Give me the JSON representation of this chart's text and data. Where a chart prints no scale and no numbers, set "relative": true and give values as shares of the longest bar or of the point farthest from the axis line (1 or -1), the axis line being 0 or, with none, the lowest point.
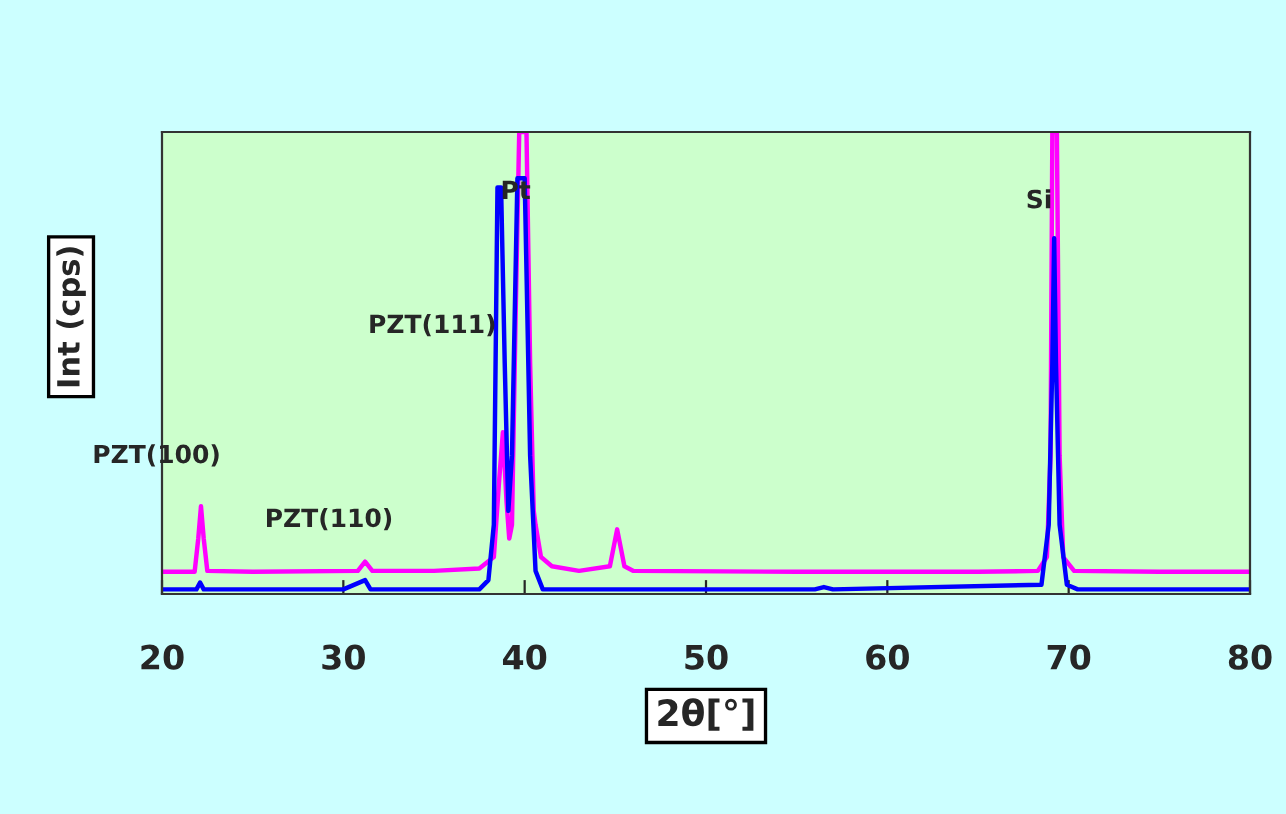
{
  "chart_data": {
    "type": "line",
    "relative": true,
    "xlabel": "2θ[°]",
    "ylabel": "Int (cps)",
    "xlim": [
      20,
      80
    ],
    "xticks": [
      20,
      30,
      40,
      50,
      60,
      70,
      80
    ],
    "grid": false,
    "legend": false,
    "marker": "none",
    "line_style": "solid",
    "series": [
      {
        "color": "#ff00ff",
        "x": [
          20,
          21.8,
          22.0,
          22.15,
          22.3,
          22.5,
          25,
          30.8,
          31.2,
          31.6,
          35,
          37.5,
          38.3,
          38.6,
          38.8,
          39.0,
          39.15,
          39.3,
          39.5,
          39.7,
          40.1,
          40.3,
          40.5,
          40.6,
          40.9,
          41.5,
          43,
          44.7,
          45.1,
          45.5,
          46,
          55,
          65,
          68.3,
          68.8,
          69.0,
          69.1,
          69.35,
          69.5,
          69.7,
          70.3,
          75,
          80
        ],
        "values": [
          0.048,
          0.048,
          0.12,
          0.19,
          0.12,
          0.05,
          0.048,
          0.05,
          0.07,
          0.05,
          0.05,
          0.055,
          0.08,
          0.25,
          0.35,
          0.2,
          0.12,
          0.15,
          0.6,
          1,
          1,
          0.5,
          0.18,
          0.15,
          0.08,
          0.06,
          0.05,
          0.06,
          0.14,
          0.06,
          0.05,
          0.048,
          0.048,
          0.05,
          0.08,
          0.3,
          1,
          1,
          0.3,
          0.08,
          0.05,
          0.048,
          0.048
        ]
      },
      {
        "color": "#0000ff",
        "x": [
          20,
          21.9,
          22.1,
          22.3,
          30,
          31.2,
          31.5,
          37.5,
          38.0,
          38.3,
          38.5,
          38.7,
          38.9,
          39.1,
          39.3,
          39.6,
          40.0,
          40.3,
          40.6,
          41,
          56,
          56.5,
          57,
          68.5,
          68.9,
          69.1,
          69.2,
          69.3,
          69.5,
          69.9,
          70.5,
          80
        ],
        "values": [
          0.01,
          0.01,
          0.025,
          0.01,
          0.01,
          0.03,
          0.01,
          0.01,
          0.03,
          0.15,
          0.88,
          0.88,
          0.5,
          0.18,
          0.3,
          0.9,
          0.9,
          0.3,
          0.05,
          0.01,
          0.01,
          0.015,
          0.01,
          0.02,
          0.15,
          0.5,
          0.77,
          0.5,
          0.15,
          0.02,
          0.01,
          0.01
        ]
      }
    ],
    "annotations": [
      {
        "text": "PZT(100)",
        "x": 22.15,
        "y": 0.19
      },
      {
        "text": "PZT(110)",
        "x": 31.2,
        "y": 0.07
      },
      {
        "text": "PZT(111)",
        "x": 38.45,
        "y": 0.58
      },
      {
        "text": "Pt",
        "x": 39.5,
        "y": 0.87
      },
      {
        "text": "Si",
        "x": 69.1,
        "y": 0.85
      }
    ]
  }
}
